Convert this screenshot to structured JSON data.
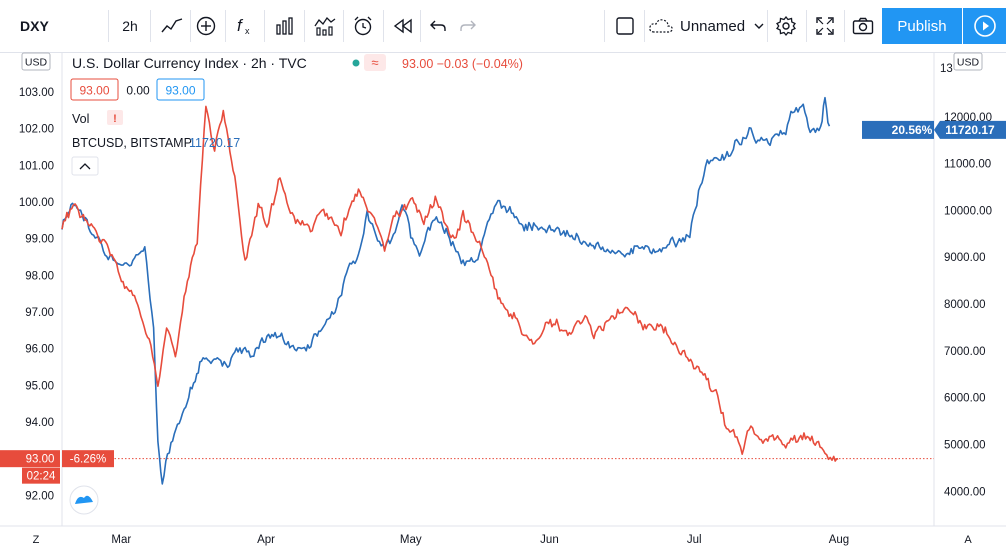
{
  "toolbar": {
    "symbol": "DXY",
    "interval": "2h",
    "layout_name": "Unnamed",
    "publish_label": "Publish"
  },
  "legend": {
    "main_title": "U.S. Dollar Currency Index · 2h · TVC",
    "main_change": "93.00  −0.03 (−0.04%)",
    "bid": "93.00",
    "spread": "0.00",
    "ask": "93.00",
    "vol_label": "Vol",
    "vol_warning": "!",
    "compare_label": "BTCUSD, BITSTAMP",
    "compare_value": "11720.17"
  },
  "scales": {
    "left_currency": "USD",
    "right_currency": "USD",
    "right_top_partial": "13",
    "left_mode": "Z",
    "right_mode": "A"
  },
  "labels": {
    "dxy_price": "93.00",
    "dxy_pct": "-6.26%",
    "countdown": "02:24",
    "btc_pct": "20.56%",
    "btc_price": "11720.17"
  },
  "colors": {
    "dxy": "#e74c3c",
    "btc": "#2a6eba",
    "accent": "#2196f3"
  },
  "chart_data": {
    "type": "line",
    "x_ticks": [
      "Mar",
      "Apr",
      "May",
      "Jun",
      "Jul",
      "Aug"
    ],
    "left_axis": {
      "ticks": [
        "92.00",
        "93.00",
        "94.00",
        "95.00",
        "96.00",
        "97.00",
        "98.00",
        "99.00",
        "100.00",
        "101.00",
        "102.00",
        "103.00"
      ],
      "range": [
        91.6,
        103.6
      ]
    },
    "right_axis": {
      "ticks": [
        "4000.00",
        "5000.00",
        "6000.00",
        "7000.00",
        "8000.00",
        "9000.00",
        "10000.00",
        "11000.00",
        "12000.00"
      ],
      "range": [
        3600,
        13000
      ]
    },
    "series": [
      {
        "axis": "left",
        "points": [
          [
            0,
            99.4
          ],
          [
            0.015,
            99.9
          ],
          [
            0.03,
            99.4
          ],
          [
            0.05,
            98.9
          ],
          [
            0.07,
            97.9
          ],
          [
            0.085,
            97.3
          ],
          [
            0.1,
            96.3
          ],
          [
            0.11,
            95.0
          ],
          [
            0.12,
            96.5
          ],
          [
            0.13,
            95.8
          ],
          [
            0.14,
            97.5
          ],
          [
            0.155,
            99.0
          ],
          [
            0.165,
            102.6
          ],
          [
            0.175,
            101.4
          ],
          [
            0.185,
            102.4
          ],
          [
            0.2,
            100.5
          ],
          [
            0.21,
            98.4
          ],
          [
            0.225,
            99.9
          ],
          [
            0.235,
            99.4
          ],
          [
            0.25,
            100.6
          ],
          [
            0.26,
            99.7
          ],
          [
            0.27,
            99.4
          ],
          [
            0.285,
            99.3
          ],
          [
            0.3,
            99.8
          ],
          [
            0.32,
            99.3
          ],
          [
            0.34,
            100.4
          ],
          [
            0.36,
            99.5
          ],
          [
            0.37,
            98.8
          ],
          [
            0.38,
            99.6
          ],
          [
            0.4,
            100.0
          ],
          [
            0.415,
            99.5
          ],
          [
            0.43,
            100.1
          ],
          [
            0.44,
            99.4
          ],
          [
            0.45,
            98.8
          ],
          [
            0.46,
            99.6
          ],
          [
            0.475,
            99.0
          ],
          [
            0.49,
            98.2
          ],
          [
            0.5,
            97.3
          ],
          [
            0.52,
            96.8
          ],
          [
            0.54,
            96.1
          ],
          [
            0.56,
            96.7
          ],
          [
            0.58,
            96.5
          ],
          [
            0.6,
            96.8
          ],
          [
            0.61,
            96.3
          ],
          [
            0.63,
            96.9
          ],
          [
            0.65,
            97.1
          ],
          [
            0.67,
            96.6
          ],
          [
            0.69,
            96.5
          ],
          [
            0.71,
            95.9
          ],
          [
            0.73,
            95.5
          ],
          [
            0.75,
            94.8
          ],
          [
            0.76,
            94.0
          ],
          [
            0.77,
            93.8
          ],
          [
            0.78,
            93.2
          ],
          [
            0.79,
            93.9
          ],
          [
            0.8,
            93.5
          ],
          [
            0.815,
            93.7
          ],
          [
            0.83,
            93.3
          ],
          [
            0.84,
            93.6
          ],
          [
            0.86,
            93.6
          ],
          [
            0.875,
            93.1
          ],
          [
            0.885,
            92.9
          ],
          [
            0.89,
            93.0
          ]
        ]
      },
      {
        "axis": "right",
        "points": [
          [
            0,
            9700
          ],
          [
            0.012,
            10100
          ],
          [
            0.025,
            9800
          ],
          [
            0.04,
            9400
          ],
          [
            0.055,
            9000
          ],
          [
            0.07,
            8800
          ],
          [
            0.085,
            9000
          ],
          [
            0.095,
            9100
          ],
          [
            0.105,
            7400
          ],
          [
            0.11,
            5100
          ],
          [
            0.115,
            4100
          ],
          [
            0.125,
            5000
          ],
          [
            0.14,
            5800
          ],
          [
            0.16,
            6800
          ],
          [
            0.18,
            6800
          ],
          [
            0.19,
            6600
          ],
          [
            0.2,
            7000
          ],
          [
            0.21,
            7000
          ],
          [
            0.22,
            6900
          ],
          [
            0.235,
            7300
          ],
          [
            0.25,
            7300
          ],
          [
            0.265,
            7000
          ],
          [
            0.28,
            7000
          ],
          [
            0.3,
            7600
          ],
          [
            0.315,
            7900
          ],
          [
            0.33,
            8700
          ],
          [
            0.34,
            9000
          ],
          [
            0.35,
            9900
          ],
          [
            0.36,
            9400
          ],
          [
            0.37,
            9300
          ],
          [
            0.38,
            9500
          ],
          [
            0.39,
            10100
          ],
          [
            0.4,
            9500
          ],
          [
            0.41,
            9000
          ],
          [
            0.42,
            9700
          ],
          [
            0.435,
            9800
          ],
          [
            0.45,
            9200
          ],
          [
            0.46,
            8900
          ],
          [
            0.475,
            9000
          ],
          [
            0.49,
            9700
          ],
          [
            0.5,
            10100
          ],
          [
            0.51,
            10000
          ],
          [
            0.53,
            9700
          ],
          [
            0.55,
            9600
          ],
          [
            0.57,
            9500
          ],
          [
            0.59,
            9400
          ],
          [
            0.6,
            9300
          ],
          [
            0.62,
            9200
          ],
          [
            0.64,
            9100
          ],
          [
            0.66,
            9200
          ],
          [
            0.68,
            9100
          ],
          [
            0.7,
            9300
          ],
          [
            0.71,
            9300
          ],
          [
            0.72,
            9500
          ],
          [
            0.73,
            10400
          ],
          [
            0.74,
            11000
          ],
          [
            0.75,
            11100
          ],
          [
            0.77,
            11300
          ],
          [
            0.79,
            11800
          ],
          [
            0.8,
            11500
          ],
          [
            0.81,
            11500
          ],
          [
            0.82,
            11600
          ],
          [
            0.83,
            11700
          ],
          [
            0.84,
            12100
          ],
          [
            0.85,
            12300
          ],
          [
            0.86,
            11700
          ],
          [
            0.87,
            11800
          ],
          [
            0.875,
            12400
          ],
          [
            0.88,
            11800
          ]
        ]
      }
    ]
  }
}
